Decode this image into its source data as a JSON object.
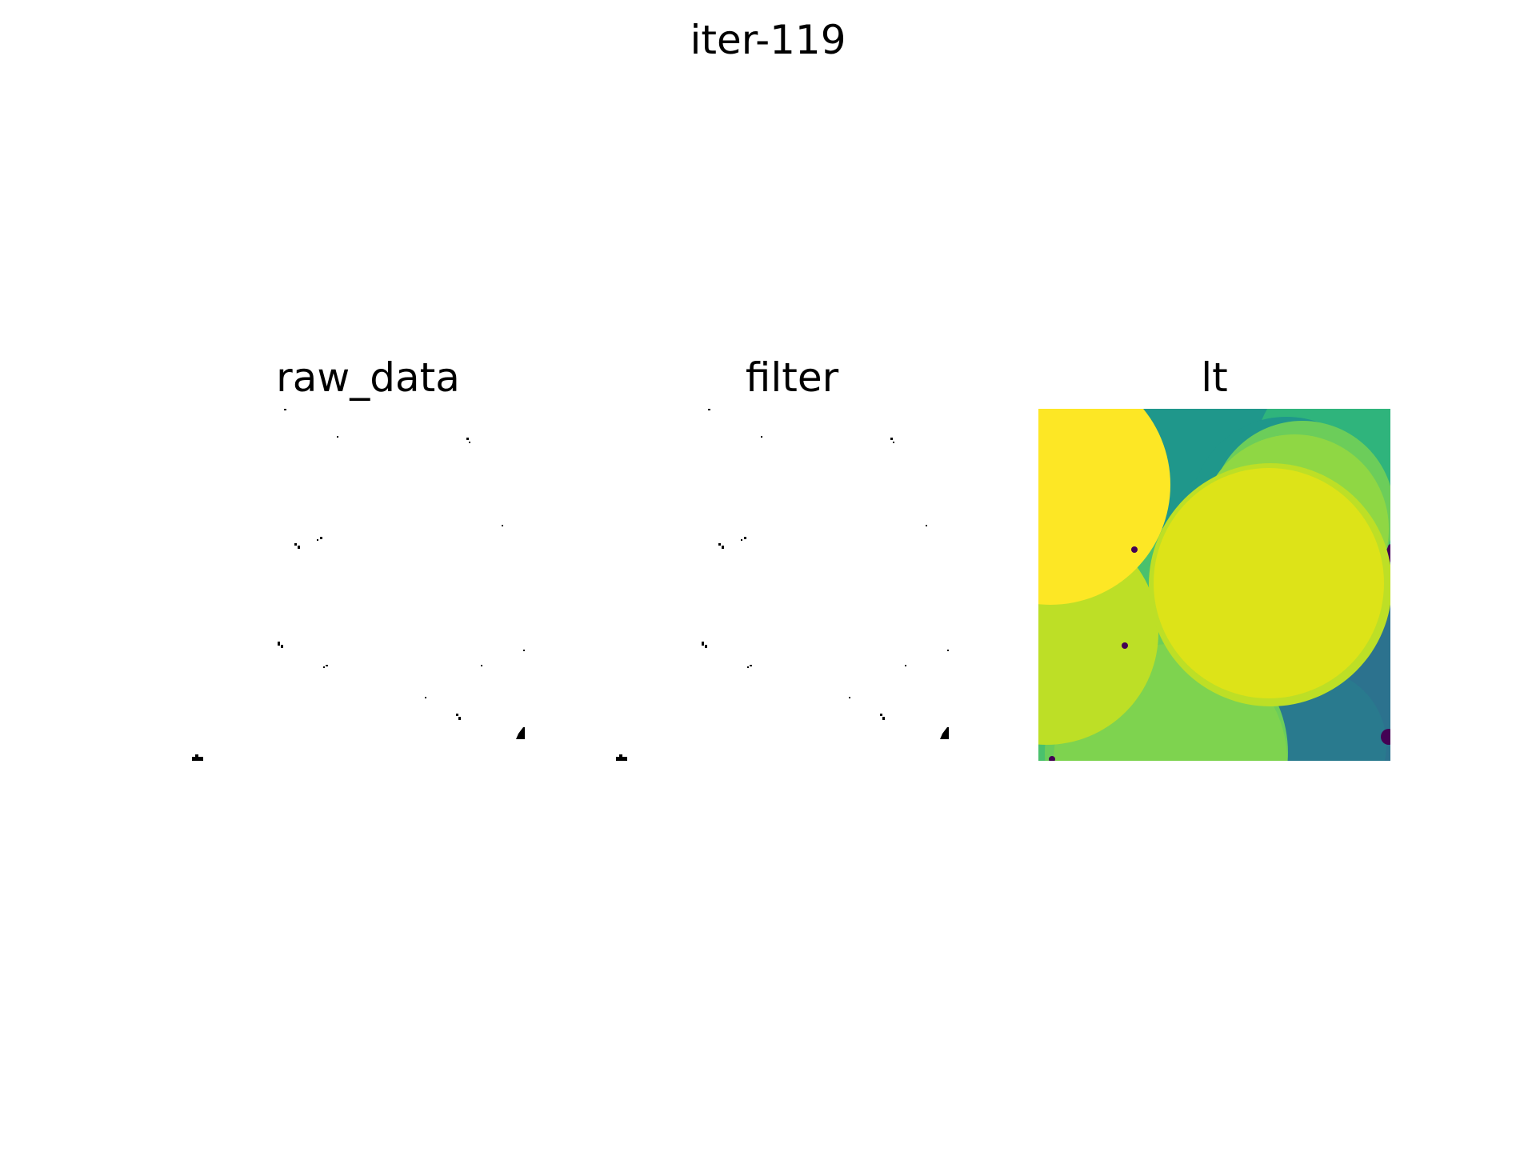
{
  "figure": {
    "suptitle": "iter-119",
    "panels": [
      {
        "title": "raw_data",
        "colormap": "binary",
        "background": "#ffffff",
        "marks": "#000000"
      },
      {
        "title": "filter",
        "colormap": "binary",
        "background": "#ffffff",
        "marks": "#000000"
      },
      {
        "title": "lt",
        "colormap": "viridis",
        "palette": {
          "dark_purple": "#440154",
          "teal_blue": "#2c728e",
          "blue_teal": "#297a8e",
          "teal": "#1f978b",
          "green_teal": "#2fb47c",
          "green": "#4ac16d",
          "mid_green": "#6ccd5a",
          "light_green": "#7ed34f",
          "lime": "#8fd744",
          "yellow_green": "#bddf26",
          "yellow_lime": "#dde318",
          "bright_yellow": "#fde725"
        }
      }
    ]
  }
}
